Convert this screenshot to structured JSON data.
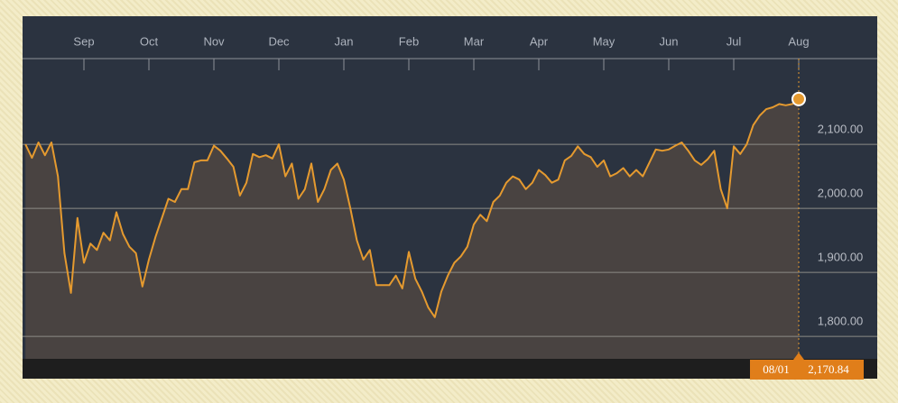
{
  "chart_data": {
    "type": "line",
    "categories": [
      null,
      null,
      null,
      null,
      null,
      null,
      null,
      null,
      null,
      "Sep",
      null,
      null,
      null,
      null,
      null,
      null,
      null,
      null,
      null,
      "Oct",
      null,
      null,
      null,
      null,
      null,
      null,
      null,
      null,
      null,
      "Nov",
      null,
      null,
      null,
      null,
      null,
      null,
      null,
      null,
      null,
      "Dec",
      null,
      null,
      null,
      null,
      null,
      null,
      null,
      null,
      null,
      "Jan",
      null,
      null,
      null,
      null,
      null,
      null,
      null,
      null,
      null,
      "Feb",
      null,
      null,
      null,
      null,
      null,
      null,
      null,
      null,
      null,
      "Mar",
      null,
      null,
      null,
      null,
      null,
      null,
      null,
      null,
      null,
      "Apr",
      null,
      null,
      null,
      null,
      null,
      null,
      null,
      null,
      null,
      "May",
      null,
      null,
      null,
      null,
      null,
      null,
      null,
      null,
      null,
      "Jun",
      null,
      null,
      null,
      null,
      null,
      null,
      null,
      null,
      null,
      "Jul",
      null,
      null,
      null,
      null,
      null,
      null,
      null,
      null,
      null,
      "Aug"
    ],
    "values": [
      2100,
      2079,
      2103,
      2083,
      2103,
      2050,
      1930,
      1868,
      1985,
      1915,
      1945,
      1935,
      1962,
      1950,
      1994,
      1960,
      1940,
      1930,
      1878,
      1920,
      1955,
      1985,
      2015,
      2010,
      2030,
      2030,
      2072,
      2075,
      2075,
      2098,
      2090,
      2078,
      2065,
      2020,
      2040,
      2085,
      2080,
      2083,
      2078,
      2100,
      2050,
      2070,
      2015,
      2030,
      2070,
      2010,
      2030,
      2060,
      2070,
      2045,
      2000,
      1950,
      1920,
      1935,
      1880,
      1880,
      1880,
      1895,
      1875,
      1932,
      1890,
      1870,
      1845,
      1830,
      1870,
      1895,
      1915,
      1925,
      1940,
      1975,
      1990,
      1980,
      2010,
      2020,
      2040,
      2050,
      2045,
      2030,
      2040,
      2060,
      2052,
      2040,
      2045,
      2075,
      2082,
      2097,
      2085,
      2080,
      2065,
      2075,
      2050,
      2055,
      2063,
      2050,
      2060,
      2050,
      2071,
      2092,
      2090,
      2092,
      2098,
      2103,
      2090,
      2075,
      2068,
      2077,
      2090,
      2030,
      2000,
      2097,
      2085,
      2100,
      2130,
      2145,
      2155,
      2158,
      2163,
      2161,
      2163,
      2170.84
    ],
    "color": "#e59a2f",
    "ylim": [
      1765,
      2234
    ],
    "yticks": [
      {
        "value": 1800,
        "label": "1,800.00"
      },
      {
        "value": 1900,
        "label": "1,900.00"
      },
      {
        "value": 2000,
        "label": "2,000.00"
      },
      {
        "value": 2100,
        "label": "2,100.00"
      }
    ],
    "grid": true,
    "last_label": {
      "date": "08/01",
      "label": "2,170.84"
    }
  }
}
